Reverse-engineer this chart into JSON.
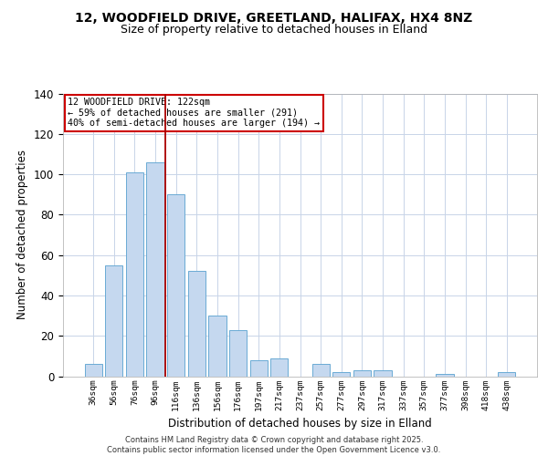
{
  "title1": "12, WOODFIELD DRIVE, GREETLAND, HALIFAX, HX4 8NZ",
  "title2": "Size of property relative to detached houses in Elland",
  "xlabel": "Distribution of detached houses by size in Elland",
  "ylabel": "Number of detached properties",
  "categories": [
    "36sqm",
    "56sqm",
    "76sqm",
    "96sqm",
    "116sqm",
    "136sqm",
    "156sqm",
    "176sqm",
    "197sqm",
    "217sqm",
    "237sqm",
    "257sqm",
    "277sqm",
    "297sqm",
    "317sqm",
    "337sqm",
    "357sqm",
    "377sqm",
    "398sqm",
    "418sqm",
    "438sqm"
  ],
  "values": [
    6,
    55,
    101,
    106,
    90,
    52,
    30,
    23,
    8,
    9,
    0,
    6,
    2,
    3,
    3,
    0,
    0,
    1,
    0,
    0,
    2
  ],
  "bar_color": "#c5d8ef",
  "bar_edge_color": "#6aaad4",
  "vline_x": 3.5,
  "vline_color": "#aa0000",
  "annotation_line1": "12 WOODFIELD DRIVE: 122sqm",
  "annotation_line2": "← 59% of detached houses are smaller (291)",
  "annotation_line3": "40% of semi-detached houses are larger (194) →",
  "ylim": [
    0,
    140
  ],
  "yticks": [
    0,
    20,
    40,
    60,
    80,
    100,
    120,
    140
  ],
  "background_color": "#ffffff",
  "grid_color": "#c8d4e8",
  "footer1": "Contains HM Land Registry data © Crown copyright and database right 2025.",
  "footer2": "Contains public sector information licensed under the Open Government Licence v3.0."
}
